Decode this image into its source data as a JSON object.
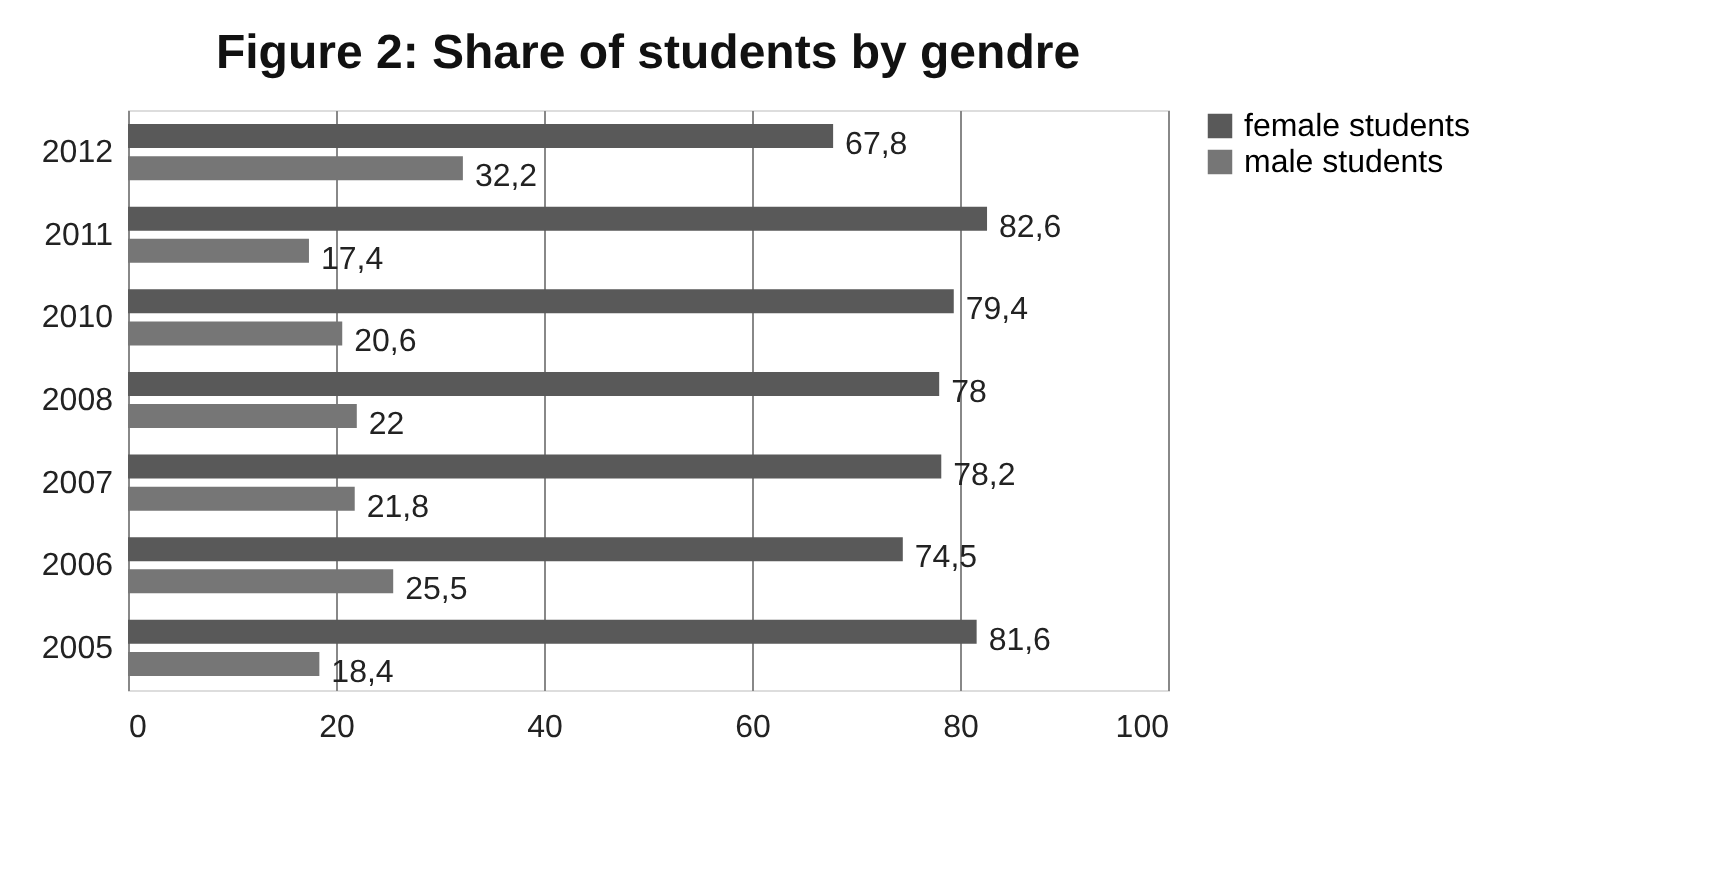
{
  "chart_data": {
    "type": "bar",
    "orientation": "horizontal",
    "title": "Figure 2: Share of students by gendre",
    "categories": [
      "2012",
      "2011",
      "2010",
      "2008",
      "2007",
      "2006",
      "2005"
    ],
    "series": [
      {
        "name": "female students",
        "color": "#595959",
        "values": [
          67.8,
          82.6,
          79.4,
          78,
          78.2,
          74.5,
          81.6
        ],
        "value_labels": [
          "67,8",
          "82,6",
          "79,4",
          "78",
          "78,2",
          "74,5",
          "81,6"
        ]
      },
      {
        "name": "male students",
        "color": "#767676",
        "values": [
          32.2,
          17.4,
          20.6,
          22,
          21.8,
          25.5,
          18.4
        ],
        "value_labels": [
          "32,2",
          "17,4",
          "20,6",
          "22",
          "21,8",
          "25,5",
          "18,4"
        ]
      }
    ],
    "xlim": [
      0,
      100
    ],
    "xticks": [
      0,
      20,
      40,
      60,
      80,
      100
    ],
    "grid": "x",
    "legend": "right"
  }
}
